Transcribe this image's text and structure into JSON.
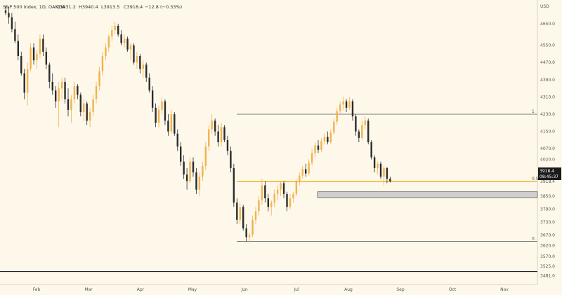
{
  "header": {
    "symbol": "S&P 500 Index, 1D, OANDA",
    "o": "O3931.2",
    "h": "H3940.4",
    "l": "L3913.5",
    "c": "C3918.4",
    "chg": "−12.8 (−0.33%)"
  },
  "currency": "USD",
  "price_tag": {
    "price": "3918.4",
    "countdown": "08:45:37"
  },
  "colors": {
    "background": "#fdf8ea",
    "up_candle": "#f2b24e",
    "down_candle": "#2b2b2b",
    "fib_line": "#e8b93b",
    "zone": "#cfcfcf",
    "tag_bg": "#1a1a1a"
  },
  "chart_data": {
    "type": "candlestick",
    "x_tick_labels": [
      "Feb",
      "Mar",
      "Apr",
      "May",
      "Jun",
      "Jul",
      "Aug",
      "Sep",
      "Oct",
      "Nov"
    ],
    "y_tick_labels": [
      "4650.0",
      "4550.0",
      "4470.0",
      "4390.0",
      "4310.0",
      "4230.0",
      "4150.0",
      "4070.0",
      "4020.0",
      "3970.0",
      "3918.4",
      "3850.0",
      "3790.0",
      "3730.0",
      "3670.0",
      "3620.0",
      "3570.0",
      "3525.0",
      "3481.0"
    ],
    "ylim": [
      3440,
      4760
    ],
    "fib_levels": [
      {
        "label": "1",
        "price": 4230
      },
      {
        "label": "0.5",
        "price": 3918.4
      },
      {
        "label": "0",
        "price": 3640
      }
    ],
    "support_zone": [
      3843,
      3870
    ],
    "bottom_line": 3500,
    "series": [
      {
        "values": [
          {
            "o": 4712,
            "h": 4735,
            "l": 4690,
            "c": 4700
          },
          {
            "o": 4700,
            "h": 4730,
            "l": 4650,
            "c": 4680
          },
          {
            "o": 4680,
            "h": 4700,
            "l": 4610,
            "c": 4625
          },
          {
            "o": 4625,
            "h": 4660,
            "l": 4560,
            "c": 4570
          },
          {
            "o": 4570,
            "h": 4600,
            "l": 4480,
            "c": 4500
          },
          {
            "o": 4500,
            "h": 4520,
            "l": 4410,
            "c": 4420
          },
          {
            "o": 4420,
            "h": 4440,
            "l": 4300,
            "c": 4330
          },
          {
            "o": 4330,
            "h": 4470,
            "l": 4270,
            "c": 4440
          },
          {
            "o": 4440,
            "h": 4560,
            "l": 4430,
            "c": 4540
          },
          {
            "o": 4540,
            "h": 4560,
            "l": 4460,
            "c": 4480
          },
          {
            "o": 4480,
            "h": 4530,
            "l": 4440,
            "c": 4510
          },
          {
            "o": 4510,
            "h": 4600,
            "l": 4490,
            "c": 4580
          },
          {
            "o": 4580,
            "h": 4600,
            "l": 4500,
            "c": 4520
          },
          {
            "o": 4520,
            "h": 4540,
            "l": 4440,
            "c": 4460
          },
          {
            "o": 4460,
            "h": 4470,
            "l": 4350,
            "c": 4380
          },
          {
            "o": 4380,
            "h": 4420,
            "l": 4320,
            "c": 4340
          },
          {
            "o": 4340,
            "h": 4360,
            "l": 4260,
            "c": 4290
          },
          {
            "o": 4290,
            "h": 4380,
            "l": 4170,
            "c": 4350
          },
          {
            "o": 4350,
            "h": 4400,
            "l": 4300,
            "c": 4380
          },
          {
            "o": 4380,
            "h": 4400,
            "l": 4280,
            "c": 4300
          },
          {
            "o": 4300,
            "h": 4350,
            "l": 4220,
            "c": 4250
          },
          {
            "o": 4250,
            "h": 4320,
            "l": 4190,
            "c": 4300
          },
          {
            "o": 4300,
            "h": 4380,
            "l": 4280,
            "c": 4360
          },
          {
            "o": 4360,
            "h": 4370,
            "l": 4300,
            "c": 4320
          },
          {
            "o": 4320,
            "h": 4330,
            "l": 4220,
            "c": 4240
          },
          {
            "o": 4240,
            "h": 4300,
            "l": 4200,
            "c": 4280
          },
          {
            "o": 4280,
            "h": 4290,
            "l": 4180,
            "c": 4200
          },
          {
            "o": 4200,
            "h": 4260,
            "l": 4170,
            "c": 4240
          },
          {
            "o": 4240,
            "h": 4320,
            "l": 4220,
            "c": 4300
          },
          {
            "o": 4300,
            "h": 4380,
            "l": 4280,
            "c": 4360
          },
          {
            "o": 4360,
            "h": 4450,
            "l": 4340,
            "c": 4430
          },
          {
            "o": 4430,
            "h": 4520,
            "l": 4410,
            "c": 4500
          },
          {
            "o": 4500,
            "h": 4560,
            "l": 4480,
            "c": 4540
          },
          {
            "o": 4540,
            "h": 4600,
            "l": 4520,
            "c": 4590
          },
          {
            "o": 4590,
            "h": 4640,
            "l": 4570,
            "c": 4620
          },
          {
            "o": 4620,
            "h": 4660,
            "l": 4600,
            "c": 4640
          },
          {
            "o": 4640,
            "h": 4650,
            "l": 4590,
            "c": 4600
          },
          {
            "o": 4600,
            "h": 4620,
            "l": 4550,
            "c": 4560
          },
          {
            "o": 4560,
            "h": 4600,
            "l": 4540,
            "c": 4580
          },
          {
            "o": 4580,
            "h": 4590,
            "l": 4520,
            "c": 4530
          },
          {
            "o": 4530,
            "h": 4560,
            "l": 4480,
            "c": 4550
          },
          {
            "o": 4550,
            "h": 4560,
            "l": 4460,
            "c": 4470
          },
          {
            "o": 4470,
            "h": 4520,
            "l": 4440,
            "c": 4500
          },
          {
            "o": 4500,
            "h": 4510,
            "l": 4420,
            "c": 4440
          },
          {
            "o": 4440,
            "h": 4480,
            "l": 4400,
            "c": 4460
          },
          {
            "o": 4460,
            "h": 4470,
            "l": 4380,
            "c": 4400
          },
          {
            "o": 4400,
            "h": 4420,
            "l": 4330,
            "c": 4340
          },
          {
            "o": 4340,
            "h": 4360,
            "l": 4240,
            "c": 4260
          },
          {
            "o": 4260,
            "h": 4280,
            "l": 4170,
            "c": 4190
          },
          {
            "o": 4190,
            "h": 4270,
            "l": 4170,
            "c": 4250
          },
          {
            "o": 4250,
            "h": 4310,
            "l": 4230,
            "c": 4290
          },
          {
            "o": 4290,
            "h": 4300,
            "l": 4180,
            "c": 4200
          },
          {
            "o": 4200,
            "h": 4230,
            "l": 4130,
            "c": 4150
          },
          {
            "o": 4150,
            "h": 4250,
            "l": 4140,
            "c": 4230
          },
          {
            "o": 4230,
            "h": 4240,
            "l": 4130,
            "c": 4140
          },
          {
            "o": 4140,
            "h": 4160,
            "l": 4060,
            "c": 4080
          },
          {
            "o": 4080,
            "h": 4100,
            "l": 3990,
            "c": 4010
          },
          {
            "o": 4010,
            "h": 4040,
            "l": 3930,
            "c": 3950
          },
          {
            "o": 3950,
            "h": 3980,
            "l": 3880,
            "c": 3920
          },
          {
            "o": 3920,
            "h": 4030,
            "l": 3910,
            "c": 4010
          },
          {
            "o": 4010,
            "h": 4030,
            "l": 3940,
            "c": 3960
          },
          {
            "o": 3960,
            "h": 3980,
            "l": 3860,
            "c": 3880
          },
          {
            "o": 3880,
            "h": 3960,
            "l": 3850,
            "c": 3940
          },
          {
            "o": 3940,
            "h": 4010,
            "l": 3920,
            "c": 3990
          },
          {
            "o": 3990,
            "h": 4100,
            "l": 3970,
            "c": 4080
          },
          {
            "o": 4080,
            "h": 4180,
            "l": 4060,
            "c": 4160
          },
          {
            "o": 4160,
            "h": 4230,
            "l": 4140,
            "c": 4200
          },
          {
            "o": 4200,
            "h": 4210,
            "l": 4130,
            "c": 4150
          },
          {
            "o": 4150,
            "h": 4180,
            "l": 4080,
            "c": 4100
          },
          {
            "o": 4100,
            "h": 4190,
            "l": 4080,
            "c": 4170
          },
          {
            "o": 4170,
            "h": 4180,
            "l": 4100,
            "c": 4110
          },
          {
            "o": 4110,
            "h": 4130,
            "l": 4040,
            "c": 4060
          },
          {
            "o": 4060,
            "h": 4080,
            "l": 3960,
            "c": 3980
          },
          {
            "o": 3980,
            "h": 4000,
            "l": 3800,
            "c": 3820
          },
          {
            "o": 3820,
            "h": 3840,
            "l": 3720,
            "c": 3740
          },
          {
            "o": 3740,
            "h": 3820,
            "l": 3720,
            "c": 3800
          },
          {
            "o": 3800,
            "h": 3810,
            "l": 3690,
            "c": 3700
          },
          {
            "o": 3700,
            "h": 3720,
            "l": 3640,
            "c": 3660
          },
          {
            "o": 3660,
            "h": 3680,
            "l": 3635,
            "c": 3670
          },
          {
            "o": 3670,
            "h": 3760,
            "l": 3660,
            "c": 3740
          },
          {
            "o": 3740,
            "h": 3800,
            "l": 3720,
            "c": 3780
          },
          {
            "o": 3780,
            "h": 3850,
            "l": 3760,
            "c": 3830
          },
          {
            "o": 3830,
            "h": 3930,
            "l": 3810,
            "c": 3900
          },
          {
            "o": 3900,
            "h": 3920,
            "l": 3820,
            "c": 3840
          },
          {
            "o": 3840,
            "h": 3860,
            "l": 3780,
            "c": 3800
          },
          {
            "o": 3800,
            "h": 3830,
            "l": 3760,
            "c": 3820
          },
          {
            "o": 3820,
            "h": 3880,
            "l": 3800,
            "c": 3860
          },
          {
            "o": 3860,
            "h": 3900,
            "l": 3830,
            "c": 3880
          },
          {
            "o": 3880,
            "h": 3920,
            "l": 3850,
            "c": 3910
          },
          {
            "o": 3910,
            "h": 3920,
            "l": 3840,
            "c": 3860
          },
          {
            "o": 3860,
            "h": 3870,
            "l": 3780,
            "c": 3800
          },
          {
            "o": 3800,
            "h": 3860,
            "l": 3790,
            "c": 3840
          },
          {
            "o": 3840,
            "h": 3870,
            "l": 3820,
            "c": 3860
          },
          {
            "o": 3860,
            "h": 3930,
            "l": 3850,
            "c": 3920
          },
          {
            "o": 3920,
            "h": 3960,
            "l": 3900,
            "c": 3945
          },
          {
            "o": 3945,
            "h": 3990,
            "l": 3930,
            "c": 3975
          },
          {
            "o": 3975,
            "h": 4000,
            "l": 3940,
            "c": 3955
          },
          {
            "o": 3955,
            "h": 4020,
            "l": 3945,
            "c": 4005
          },
          {
            "o": 4005,
            "h": 4070,
            "l": 3990,
            "c": 4050
          },
          {
            "o": 4050,
            "h": 4100,
            "l": 4030,
            "c": 4085
          },
          {
            "o": 4085,
            "h": 4110,
            "l": 4050,
            "c": 4065
          },
          {
            "o": 4065,
            "h": 4120,
            "l": 4055,
            "c": 4105
          },
          {
            "o": 4105,
            "h": 4140,
            "l": 4090,
            "c": 4125
          },
          {
            "o": 4125,
            "h": 4150,
            "l": 4090,
            "c": 4100
          },
          {
            "o": 4100,
            "h": 4160,
            "l": 4090,
            "c": 4145
          },
          {
            "o": 4145,
            "h": 4210,
            "l": 4135,
            "c": 4195
          },
          {
            "o": 4195,
            "h": 4260,
            "l": 4180,
            "c": 4245
          },
          {
            "o": 4245,
            "h": 4290,
            "l": 4230,
            "c": 4275
          },
          {
            "o": 4275,
            "h": 4310,
            "l": 4250,
            "c": 4290
          },
          {
            "o": 4290,
            "h": 4300,
            "l": 4240,
            "c": 4260
          },
          {
            "o": 4260,
            "h": 4310,
            "l": 4250,
            "c": 4290
          },
          {
            "o": 4290,
            "h": 4300,
            "l": 4200,
            "c": 4220
          },
          {
            "o": 4220,
            "h": 4230,
            "l": 4130,
            "c": 4150
          },
          {
            "o": 4150,
            "h": 4160,
            "l": 4100,
            "c": 4120
          },
          {
            "o": 4120,
            "h": 4200,
            "l": 4110,
            "c": 4180
          },
          {
            "o": 4180,
            "h": 4220,
            "l": 4160,
            "c": 4200
          },
          {
            "o": 4200,
            "h": 4210,
            "l": 4090,
            "c": 4100
          },
          {
            "o": 4100,
            "h": 4110,
            "l": 4020,
            "c": 4030
          },
          {
            "o": 4030,
            "h": 4040,
            "l": 3960,
            "c": 3980
          },
          {
            "o": 3980,
            "h": 4010,
            "l": 3950,
            "c": 4000
          },
          {
            "o": 4000,
            "h": 4010,
            "l": 3930,
            "c": 3940
          },
          {
            "o": 3940,
            "h": 3990,
            "l": 3900,
            "c": 3980
          },
          {
            "o": 3980,
            "h": 3985,
            "l": 3910,
            "c": 3931
          },
          {
            "o": 3931.2,
            "h": 3940.4,
            "l": 3913.5,
            "c": 3918.4
          }
        ]
      }
    ]
  }
}
